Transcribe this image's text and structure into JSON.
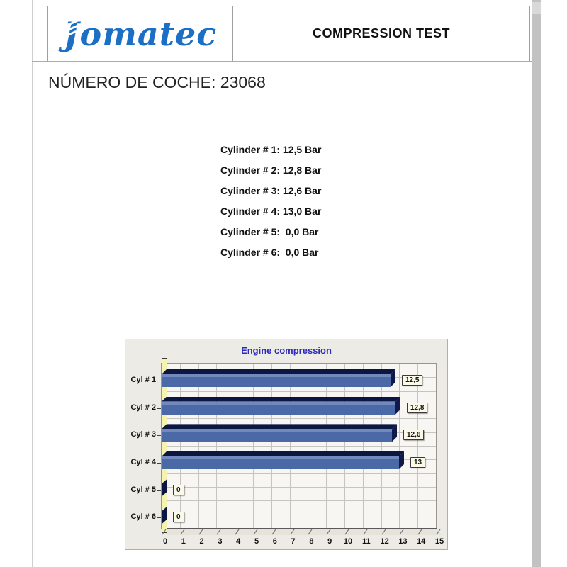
{
  "header": {
    "logo_text": "Jomatec",
    "title": "COMPRESSION TEST"
  },
  "car_number": "NÚMERO DE COCHE: 23068",
  "readings": [
    "Cylinder # 1: 12,5 Bar",
    "Cylinder # 2: 12,8 Bar",
    "Cylinder # 3: 12,6 Bar",
    "Cylinder # 4: 13,0 Bar",
    "Cylinder # 5:  0,0 Bar",
    "Cylinder # 6:  0,0 Bar"
  ],
  "chart_data": {
    "type": "bar",
    "orientation": "horizontal",
    "title": "Engine compression",
    "categories": [
      "Cyl # 1",
      "Cyl # 2",
      "Cyl # 3",
      "Cyl # 4",
      "Cyl # 5",
      "Cyl # 6"
    ],
    "values": [
      12.5,
      12.8,
      12.6,
      13.0,
      0,
      0
    ],
    "bar_labels": [
      "12,5",
      "12,8",
      "12,6",
      "13",
      "0",
      "0"
    ],
    "xlabel": "",
    "ylabel": "",
    "xlim": [
      0,
      15
    ],
    "x_ticks": [
      0,
      1,
      2,
      3,
      4,
      5,
      6,
      7,
      8,
      9,
      10,
      11,
      12,
      13,
      14,
      15
    ],
    "grid": true,
    "legend": false,
    "style": "3d-horizontal-bars",
    "colors": {
      "title": "#2b2bbd",
      "bar_face": "#4a69a6",
      "bar_face_highlight": "#7289bb",
      "bar_shadow": "#0b1642",
      "left_wall": "#f6f3ae",
      "plot_bg": "#f7f6f2",
      "grid_line": "#c6c4c0",
      "chart_bg": "#edebe5",
      "value_box_bg": "#fbfae8"
    }
  }
}
